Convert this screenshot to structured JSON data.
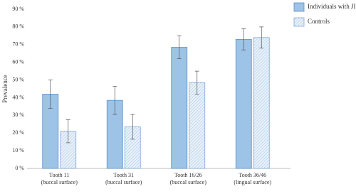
{
  "chart_data": {
    "type": "bar",
    "y_label": "Prevalence",
    "categories": [
      "Tooth 11\n(buccal surface)",
      "Tooth 31\n(buccal surface)",
      "Tooth 16/26\n(buccal surface)",
      "Tooth 36/46\n(lingual surface)"
    ],
    "series": [
      {
        "name": "Individuals with JIA",
        "color": "#9dc3e6",
        "border": "#5b8fc7",
        "hatch": false,
        "values": [
          42,
          38.5,
          68.5,
          73
        ],
        "errors": [
          8,
          8,
          6.5,
          6
        ]
      },
      {
        "name": "Controls",
        "color": "#dce9f5",
        "border": "#7fa9d6",
        "hatch": true,
        "values": [
          21,
          23.5,
          48.5,
          74
        ],
        "errors": [
          6.5,
          7,
          6.5,
          6
        ]
      }
    ],
    "ylim": [
      0,
      90
    ],
    "yticks": [
      {
        "value": 0,
        "label": "0 %"
      },
      {
        "value": 10,
        "label": "10 %"
      },
      {
        "value": 20,
        "label": "20 %"
      },
      {
        "value": 30,
        "label": "30 %"
      },
      {
        "value": 40,
        "label": "40 %"
      },
      {
        "value": 50,
        "label": "50 %"
      },
      {
        "value": 60,
        "label": "60 %"
      },
      {
        "value": 70,
        "label": "70 %"
      },
      {
        "value": 80,
        "label": "80 %"
      },
      {
        "value": 90,
        "label": "90 %"
      }
    ],
    "grid": false,
    "legend": "top-right"
  }
}
